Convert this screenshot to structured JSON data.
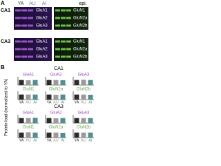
{
  "panel_a": {
    "label": "A",
    "lanes": [
      "YA",
      "AU",
      "AI"
    ],
    "epi": "epi.",
    "regions": [
      {
        "name": "CA1",
        "left": [
          "GluA1",
          "GluA2",
          "GluA3"
        ],
        "right": [
          "GluN1",
          "GluN2a",
          "GluN2b"
        ]
      },
      {
        "name": "CA3",
        "left": [
          "GluA1",
          "GluA2",
          "GluA3"
        ],
        "right": [
          "GluN1",
          "GluN2a",
          "GluN2b"
        ]
      }
    ]
  },
  "panel_b": {
    "label": "B",
    "y_label": "Protein load (normalized to YA)",
    "regions": [
      "CA1",
      "CA3"
    ]
  },
  "chart_data": [
    {
      "type": "bar",
      "title": "GluA1",
      "title_color": "#9b3fbf",
      "categories": [
        null,
        null,
        null
      ],
      "values": [
        1,
        0.95,
        1.0
      ],
      "colors": [
        "#2b2b2b",
        "#9a9a9a",
        "#4f8f8f"
      ],
      "ylim": [
        0,
        1.5
      ]
    },
    {
      "type": "bar",
      "title": "GluA2",
      "title_color": "#9b3fbf",
      "categories": [
        null,
        null,
        null
      ],
      "values": [
        1,
        1.0,
        0.95
      ],
      "colors": [
        "#2b2b2b",
        "#9a9a9a",
        "#4f8f8f"
      ],
      "ylim": [
        0,
        1.5
      ]
    },
    {
      "type": "bar",
      "title": "GluA3",
      "title_color": "#9b3fbf",
      "categories": [
        null,
        null,
        null
      ],
      "values": [
        1,
        1.05,
        1.0
      ],
      "colors": [
        "#2b2b2b",
        "#9a9a9a",
        "#4f8f8f"
      ],
      "ylim": [
        0,
        1.5
      ]
    },
    {
      "type": "bar",
      "title": "GluN1",
      "title_color": "#6aa84f",
      "categories": [
        "YA",
        "AU",
        "AI"
      ],
      "values": [
        1,
        1.0,
        1.0
      ],
      "colors": [
        "#2b2b2b",
        "#9a9a9a",
        "#4f8f8f"
      ],
      "ylim": [
        0,
        1.5
      ]
    },
    {
      "type": "bar",
      "title": "GluN2a",
      "title_color": "#6aa84f",
      "categories": [
        "YA",
        "AU",
        "AI"
      ],
      "values": [
        1,
        0.95,
        1.0
      ],
      "colors": [
        "#2b2b2b",
        "#9a9a9a",
        "#4f8f8f"
      ],
      "ylim": [
        0,
        1.5
      ]
    },
    {
      "type": "bar",
      "title": "GluN2b",
      "title_color": "#6aa84f",
      "categories": [
        "YA",
        "AU",
        "AI"
      ],
      "values": [
        1,
        1.0,
        0.95
      ],
      "colors": [
        "#2b2b2b",
        "#9a9a9a",
        "#4f8f8f"
      ],
      "ylim": [
        0,
        1.5
      ]
    },
    {
      "type": "bar",
      "title": "GluA1",
      "title_color": "#9b3fbf",
      "categories": [
        null,
        null,
        null
      ],
      "values": [
        1,
        1.0,
        1.05
      ],
      "colors": [
        "#2b2b2b",
        "#9a9a9a",
        "#4f8f8f"
      ],
      "ylim": [
        0,
        1.5
      ]
    },
    {
      "type": "bar",
      "title": "GluA2",
      "title_color": "#9b3fbf",
      "categories": [
        null,
        null,
        null
      ],
      "values": [
        1,
        0.95,
        1.0
      ],
      "colors": [
        "#2b2b2b",
        "#9a9a9a",
        "#4f8f8f"
      ],
      "ylim": [
        0,
        1.5
      ]
    },
    {
      "type": "bar",
      "title": "GluA3",
      "title_color": "#9b3fbf",
      "categories": [
        null,
        null,
        null
      ],
      "values": [
        1,
        1.0,
        1.0
      ],
      "colors": [
        "#2b2b2b",
        "#9a9a9a",
        "#4f8f8f"
      ],
      "ylim": [
        0,
        1.5
      ]
    },
    {
      "type": "bar",
      "title": "GluN1",
      "title_color": "#6aa84f",
      "categories": [
        "YA",
        "AU",
        "AI"
      ],
      "values": [
        1,
        1.05,
        1.0
      ],
      "colors": [
        "#2b2b2b",
        "#9a9a9a",
        "#4f8f8f"
      ],
      "ylim": [
        0,
        1.5
      ]
    },
    {
      "type": "bar",
      "title": "GluN2a",
      "title_color": "#6aa84f",
      "categories": [
        "YA",
        "AU",
        "AI"
      ],
      "values": [
        1,
        1.0,
        0.95
      ],
      "colors": [
        "#2b2b2b",
        "#9a9a9a",
        "#4f8f8f"
      ],
      "ylim": [
        0,
        1.5
      ]
    },
    {
      "type": "bar",
      "title": "GluN2b",
      "title_color": "#6aa84f",
      "categories": [
        "YA",
        "AU",
        "AI"
      ],
      "values": [
        1,
        1.0,
        1.0
      ],
      "colors": [
        "#2b2b2b",
        "#9a9a9a",
        "#4f8f8f"
      ],
      "ylim": [
        0,
        1.5
      ]
    }
  ]
}
